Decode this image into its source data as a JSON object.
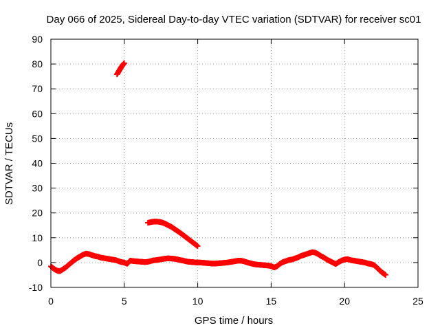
{
  "chart_data": {
    "type": "scatter",
    "title": "Day 066 of 2025, Sidereal Day-to-day VTEC variation (SDTVAR) for receiver sc01",
    "xlabel": "GPS time / hours",
    "ylabel": "SDTVAR / TECUs",
    "xlim": [
      0,
      25
    ],
    "ylim": [
      -10,
      90
    ],
    "xticks": [
      0,
      5,
      10,
      15,
      20,
      25
    ],
    "yticks": [
      -10,
      0,
      10,
      20,
      30,
      40,
      50,
      60,
      70,
      80,
      90
    ],
    "xtick_labels": [
      "0",
      "5",
      "10",
      "15",
      "20",
      "25"
    ],
    "ytick_labels": [
      "-10",
      "0",
      "10",
      "20",
      "30",
      "40",
      "50",
      "60",
      "70",
      "80",
      "90"
    ],
    "grid": true,
    "marker": "plus",
    "series_color": "#ff0000",
    "series": [
      {
        "name": "main-trace",
        "x": [
          0.0,
          0.2,
          0.4,
          0.6,
          0.8,
          1.0,
          1.2,
          1.4,
          1.6,
          1.8,
          2.0,
          2.2,
          2.4,
          2.6,
          2.8,
          3.0,
          3.2,
          3.4,
          3.6,
          3.8,
          4.0,
          4.2,
          4.4,
          4.6,
          4.8,
          5.0,
          5.2,
          5.4,
          5.6,
          5.8,
          6.0,
          6.2,
          6.4,
          6.6,
          6.8,
          7.0,
          7.2,
          7.4,
          7.6,
          7.8,
          8.0,
          8.2,
          8.4,
          8.6,
          8.8,
          9.0,
          9.2,
          9.4,
          9.6,
          9.8,
          10.0,
          10.2,
          10.4,
          10.6,
          10.8,
          11.0,
          11.2,
          11.4,
          11.6,
          11.8,
          12.0,
          12.2,
          12.4,
          12.6,
          12.8,
          13.0,
          13.2,
          13.4,
          13.6,
          13.8,
          14.0,
          14.2,
          14.4,
          14.6,
          14.8,
          15.0,
          15.2,
          15.4,
          15.6,
          15.8,
          16.0,
          16.2,
          16.4,
          16.6,
          16.8,
          17.0,
          17.2,
          17.4,
          17.6,
          17.8,
          18.0,
          18.2,
          18.4,
          18.6,
          18.8,
          19.0,
          19.2,
          19.4,
          19.6,
          19.8,
          20.0,
          20.2,
          20.4,
          20.6,
          20.8,
          21.0,
          21.2,
          21.4,
          21.6,
          21.8,
          22.0,
          22.2,
          22.4,
          22.6,
          22.8
        ],
        "y": [
          -1.5,
          -2.5,
          -3.2,
          -3.5,
          -2.8,
          -2.0,
          -1.0,
          0.0,
          1.0,
          1.8,
          2.5,
          3.2,
          3.6,
          3.4,
          3.0,
          2.6,
          2.4,
          2.0,
          1.8,
          1.6,
          1.4,
          1.2,
          1.0,
          0.6,
          0.2,
          0.0,
          -0.5,
          0.8,
          0.6,
          0.5,
          0.4,
          0.3,
          0.2,
          0.3,
          0.6,
          0.9,
          1.0,
          1.2,
          1.4,
          1.6,
          1.7,
          1.6,
          1.5,
          1.3,
          1.0,
          0.8,
          0.5,
          0.3,
          0.2,
          0.1,
          0.0,
          0.0,
          -0.1,
          -0.2,
          -0.3,
          -0.4,
          -0.4,
          -0.3,
          -0.2,
          -0.1,
          0.0,
          0.2,
          0.4,
          0.6,
          0.8,
          0.7,
          0.4,
          0.0,
          -0.3,
          -0.6,
          -0.8,
          -0.9,
          -1.0,
          -1.1,
          -1.2,
          -1.4,
          -2.0,
          -1.5,
          -0.5,
          0.2,
          0.6,
          1.0,
          1.2,
          1.6,
          2.0,
          2.6,
          3.0,
          3.4,
          3.8,
          4.2,
          4.0,
          3.4,
          2.6,
          2.0,
          1.2,
          0.6,
          0.0,
          -0.6,
          0.2,
          0.8,
          1.2,
          1.4,
          1.0,
          0.8,
          0.6,
          0.4,
          0.2,
          0.0,
          -0.4,
          -0.6,
          -1.0,
          -2.0,
          -3.2,
          -4.2,
          -5.0
        ]
      },
      {
        "name": "high-segment",
        "x": [
          4.5,
          4.6,
          4.7,
          4.8,
          4.9,
          5.0
        ],
        "y": [
          75.8,
          76.8,
          77.8,
          78.8,
          79.6,
          80.4
        ]
      },
      {
        "name": "mid-segment",
        "x": [
          6.6,
          6.8,
          7.0,
          7.2,
          7.4,
          7.6,
          7.8,
          8.0,
          8.2,
          8.4,
          8.6,
          8.8,
          9.0,
          9.2,
          9.4,
          9.6,
          9.8,
          10.0
        ],
        "y": [
          16.0,
          16.3,
          16.5,
          16.5,
          16.4,
          16.1,
          15.6,
          15.0,
          14.4,
          13.6,
          12.8,
          12.0,
          11.1,
          10.2,
          9.3,
          8.4,
          7.5,
          6.6
        ]
      }
    ]
  }
}
